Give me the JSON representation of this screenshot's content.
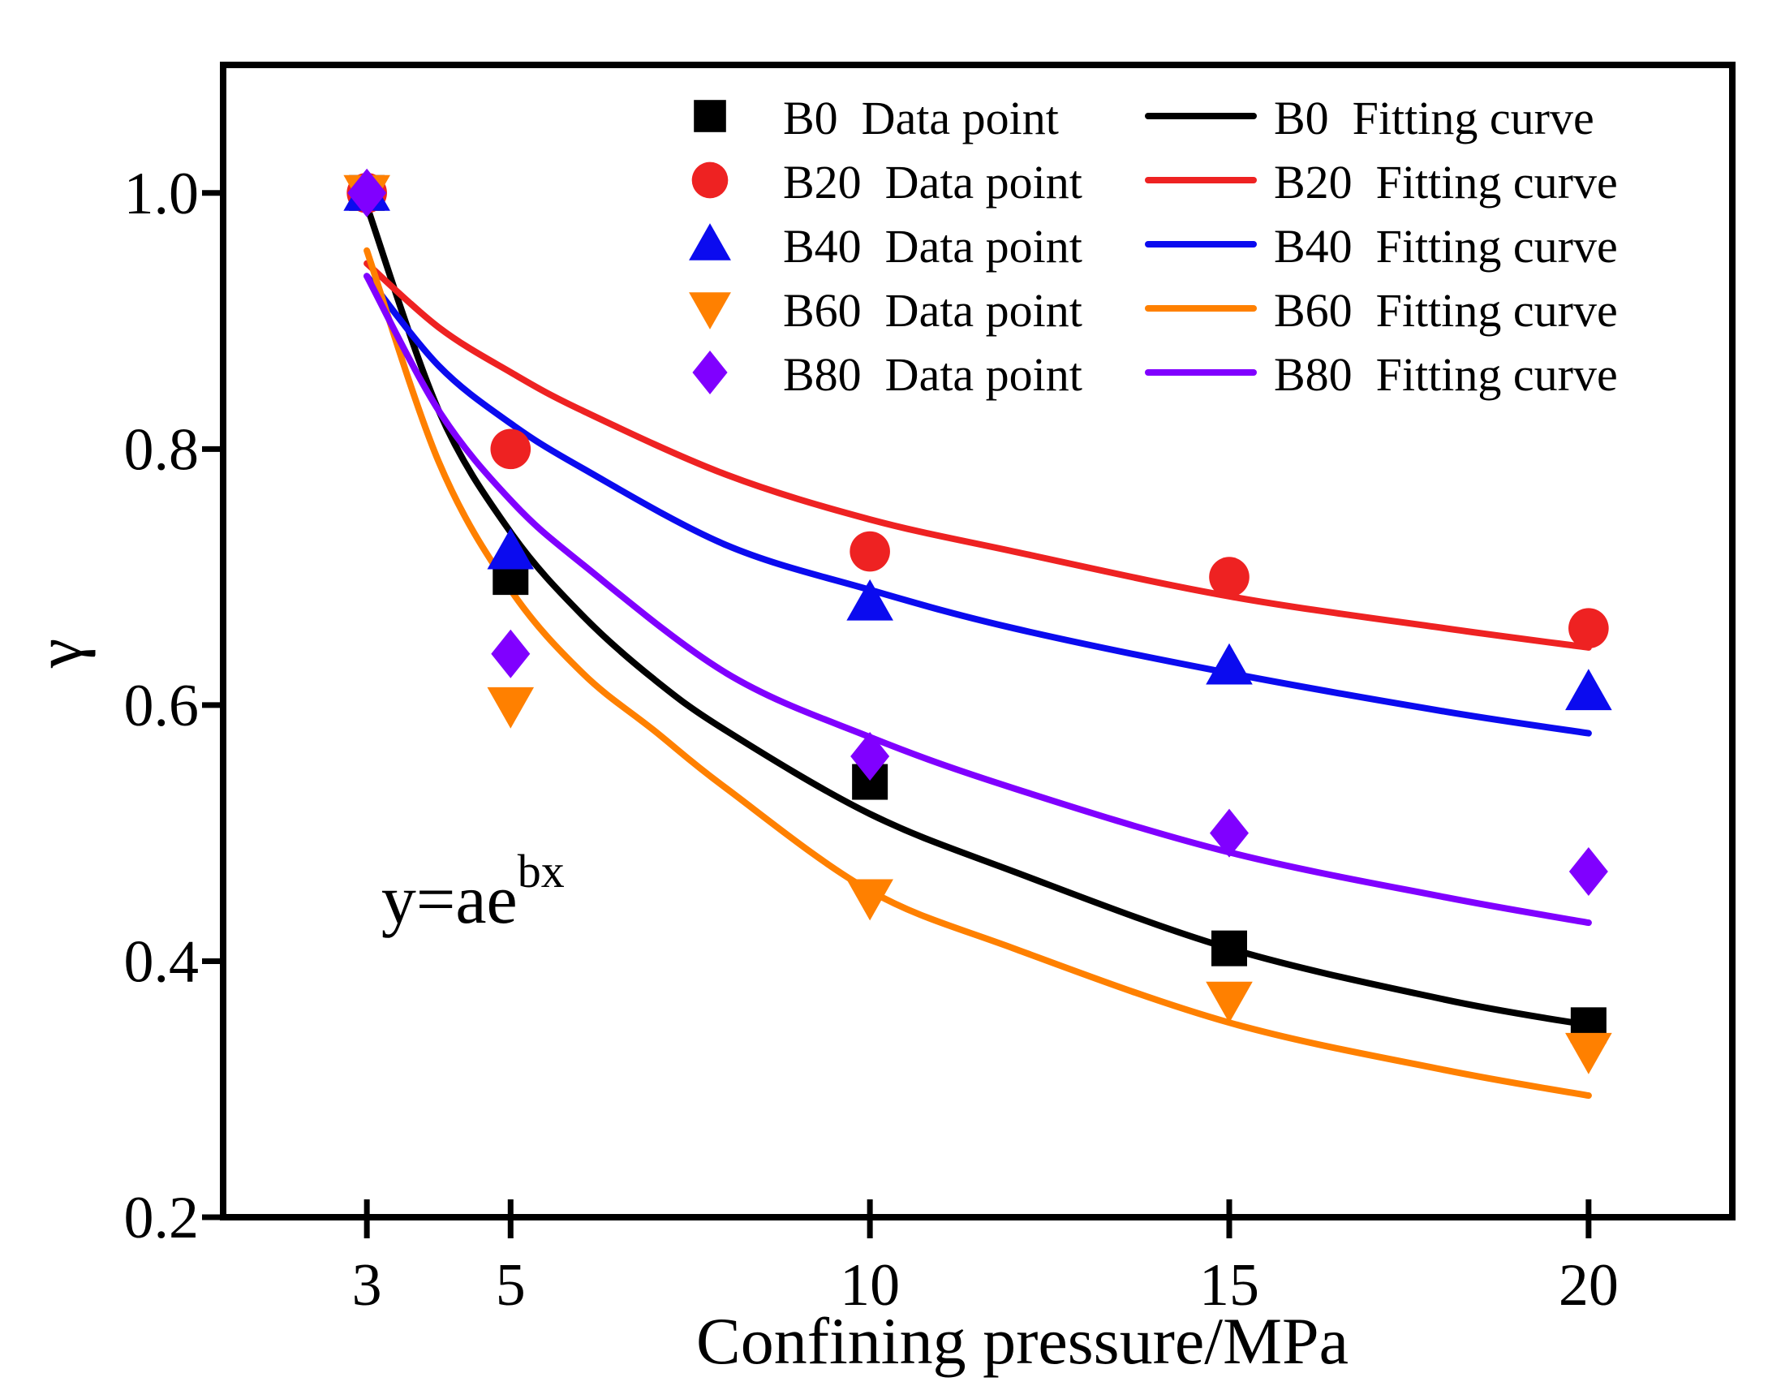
{
  "chart_data": {
    "type": "scatter",
    "title": "",
    "xlabel": "Confining pressure/MPa",
    "ylabel": "γ",
    "xlim": [
      1,
      22
    ],
    "ylim": [
      0.2,
      1.1
    ],
    "x_ticks": [
      3,
      5,
      10,
      15,
      20
    ],
    "x_tick_labels": [
      "3",
      "5",
      "10",
      "15",
      "20"
    ],
    "y_ticks": [
      0.2,
      0.4,
      0.6,
      0.8,
      1.0
    ],
    "y_tick_labels": [
      "0.2",
      "0.4",
      "0.6",
      "0.8",
      "1.0"
    ],
    "grid": false,
    "legend_position": "top-right",
    "annotation": {
      "base": "y=ae",
      "exponent": "bx"
    },
    "series": [
      {
        "name": "B0",
        "color": "#000000",
        "marker": "square",
        "point_label": "B0  Data point",
        "curve_label": "B0  Fitting curve",
        "x": [
          3,
          5,
          10,
          15,
          20
        ],
        "y": [
          1.0,
          0.7,
          0.54,
          0.41,
          0.35
        ],
        "fit_x": [
          3,
          4,
          5,
          6,
          7,
          8,
          10,
          12,
          15,
          18,
          20
        ],
        "fit_y": [
          0.99,
          0.83,
          0.735,
          0.67,
          0.62,
          0.58,
          0.515,
          0.47,
          0.41,
          0.37,
          0.35
        ]
      },
      {
        "name": "B20",
        "color": "#ee2222",
        "marker": "circle",
        "point_label": "B20  Data point",
        "curve_label": "B20  Fitting curve",
        "x": [
          3,
          5,
          10,
          15,
          20
        ],
        "y": [
          1.0,
          0.8,
          0.72,
          0.7,
          0.66
        ],
        "fit_x": [
          3,
          4,
          5,
          6,
          8,
          10,
          12,
          15,
          18,
          20
        ],
        "fit_y": [
          0.945,
          0.895,
          0.86,
          0.83,
          0.78,
          0.745,
          0.72,
          0.685,
          0.66,
          0.645
        ]
      },
      {
        "name": "B40",
        "color": "#0b0bef",
        "marker": "triangle-up",
        "point_label": "B40  Data point",
        "curve_label": "B40  Fitting curve",
        "x": [
          3,
          5,
          10,
          15,
          20
        ],
        "y": [
          1.0,
          0.72,
          0.68,
          0.63,
          0.61
        ],
        "fit_x": [
          3,
          4,
          5,
          6,
          8,
          10,
          12,
          15,
          18,
          20
        ],
        "fit_y": [
          0.935,
          0.865,
          0.82,
          0.785,
          0.725,
          0.69,
          0.66,
          0.625,
          0.595,
          0.578
        ]
      },
      {
        "name": "B60",
        "color": "#ff8000",
        "marker": "triangle-down",
        "point_label": "B60  Data point",
        "curve_label": "B60  Fitting curve",
        "x": [
          3,
          5,
          10,
          15,
          20
        ],
        "y": [
          1.0,
          0.6,
          0.45,
          0.37,
          0.33
        ],
        "fit_x": [
          3,
          4,
          5,
          6,
          7,
          8,
          10,
          12,
          15,
          18,
          20
        ],
        "fit_y": [
          0.955,
          0.79,
          0.69,
          0.625,
          0.58,
          0.535,
          0.455,
          0.41,
          0.352,
          0.315,
          0.295
        ]
      },
      {
        "name": "B80",
        "color": "#8000ff",
        "marker": "diamond",
        "point_label": "B80  Data point",
        "curve_label": "B80  Fitting curve",
        "x": [
          3,
          5,
          10,
          15,
          20
        ],
        "y": [
          1.0,
          0.64,
          0.56,
          0.5,
          0.47
        ],
        "fit_x": [
          3,
          4,
          5,
          6,
          8,
          10,
          12,
          15,
          18,
          20
        ],
        "fit_y": [
          0.935,
          0.83,
          0.76,
          0.71,
          0.625,
          0.575,
          0.535,
          0.485,
          0.45,
          0.43
        ]
      }
    ]
  }
}
